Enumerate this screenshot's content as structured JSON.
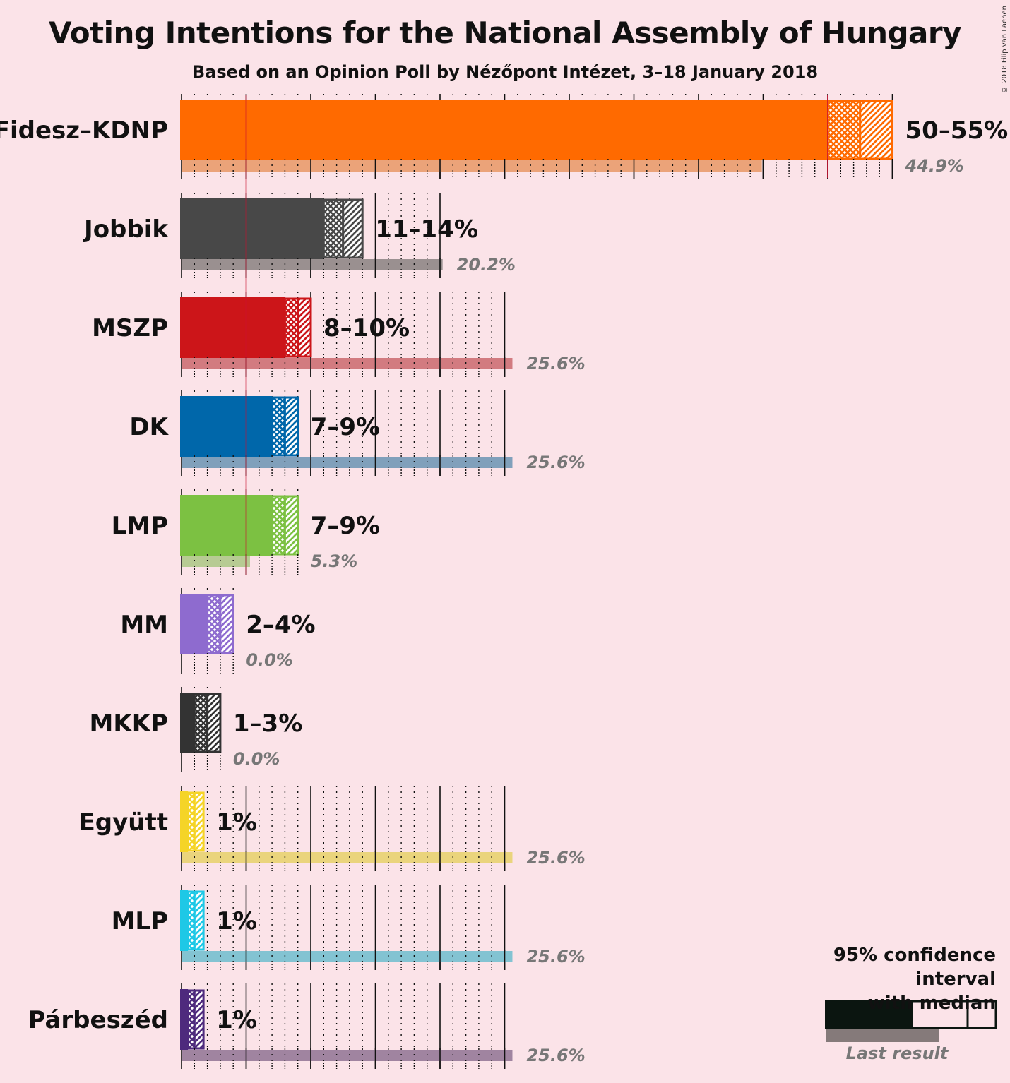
{
  "title": "Voting Intentions for the National Assembly of Hungary",
  "subtitle": "Based on an Opinion Poll by Nézőpont Intézet, 3–18 January 2018",
  "copyright": "© 2018 Filip van Laenen",
  "legend": {
    "title_line1": "95% confidence interval",
    "title_line2": "with median",
    "last_result": "Last result"
  },
  "chart_data": {
    "type": "bar",
    "orientation": "horizontal",
    "x_range": [
      0,
      55
    ],
    "majority_line": 5,
    "parties": [
      {
        "name": "Fidesz–KDNP",
        "ci_low": 50,
        "median": 52.5,
        "ci_high": 55,
        "label": "50–55%",
        "last": 44.9,
        "last_label": "44.9%",
        "color": "#ff6a00",
        "last_color": "#eba379"
      },
      {
        "name": "Jobbik",
        "ci_low": 11,
        "median": 12.5,
        "ci_high": 14,
        "label": "11–14%",
        "last": 20.2,
        "last_label": "20.2%",
        "color": "#484848",
        "last_color": "#9a9090"
      },
      {
        "name": "MSZP",
        "ci_low": 8,
        "median": 9,
        "ci_high": 10,
        "label": "8–10%",
        "last": 25.6,
        "last_label": "25.6%",
        "color": "#cc1519",
        "last_color": "#d27b80"
      },
      {
        "name": "DK",
        "ci_low": 7,
        "median": 8,
        "ci_high": 9,
        "label": "7–9%",
        "last": 25.6,
        "last_label": "25.6%",
        "color": "#0067aa",
        "last_color": "#80a0bb"
      },
      {
        "name": "LMP",
        "ci_low": 7,
        "median": 8,
        "ci_high": 9,
        "label": "7–9%",
        "last": 5.3,
        "last_label": "5.3%",
        "color": "#7cc142",
        "last_color": "#b7cb93"
      },
      {
        "name": "MM",
        "ci_low": 2,
        "median": 3,
        "ci_high": 4,
        "label": "2–4%",
        "last": 0.0,
        "last_label": "0.0%",
        "color": "#8e6bcf",
        "last_color": "#bba6d6"
      },
      {
        "name": "MKKP",
        "ci_low": 1,
        "median": 2,
        "ci_high": 3,
        "label": "1–3%",
        "last": 0.0,
        "last_label": "0.0%",
        "color": "#333333",
        "last_color": "#888888"
      },
      {
        "name": "Együtt",
        "ci_low": 0.5,
        "median": 1,
        "ci_high": 1.7,
        "label": "1%",
        "last": 25.6,
        "last_label": "25.6%",
        "color": "#f5d427",
        "last_color": "#ead47c"
      },
      {
        "name": "MLP",
        "ci_low": 0.5,
        "median": 1,
        "ci_high": 1.7,
        "label": "1%",
        "last": 25.6,
        "last_label": "25.6%",
        "color": "#1ec8e6",
        "last_color": "#83c3d2"
      },
      {
        "name": "Párbeszéd",
        "ci_low": 0.5,
        "median": 1,
        "ci_high": 1.7,
        "label": "1%",
        "last": 25.6,
        "last_label": "25.6%",
        "color": "#4e2a7d",
        "last_color": "#a084a0"
      }
    ]
  }
}
